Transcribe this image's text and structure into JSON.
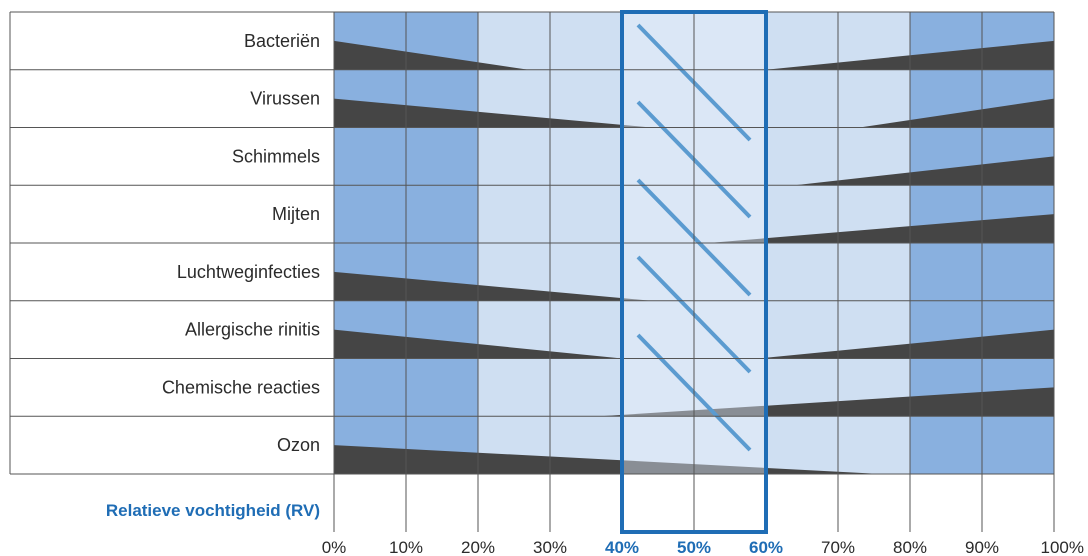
{
  "chart_data": {
    "type": "area",
    "xlabel": "Relatieve vochtigheid (RV)",
    "x_ticks": [
      "0%",
      "10%",
      "20%",
      "30%",
      "40%",
      "50%",
      "60%",
      "70%",
      "80%",
      "90%",
      "100%"
    ],
    "x_values": [
      0,
      10,
      20,
      30,
      40,
      50,
      60,
      70,
      80,
      90,
      100
    ],
    "highlighted_ticks": [
      "40%",
      "50%",
      "60%"
    ],
    "optimal_range": [
      40,
      60
    ],
    "xlim": [
      0,
      100
    ],
    "zones": [
      {
        "from": 0,
        "to": 20,
        "level": "high"
      },
      {
        "from": 20,
        "to": 40,
        "level": "low"
      },
      {
        "from": 40,
        "to": 60,
        "level": "optimal"
      },
      {
        "from": 60,
        "to": 80,
        "level": "low"
      },
      {
        "from": 80,
        "to": 100,
        "level": "high"
      }
    ],
    "series": [
      {
        "name": "Bacteriën",
        "left": {
          "from": 0,
          "to": 27
        },
        "right": {
          "from": 60,
          "to": 100
        }
      },
      {
        "name": "Virussen",
        "left": {
          "from": 0,
          "to": 44
        },
        "right": {
          "from": 73,
          "to": 100
        }
      },
      {
        "name": "Schimmels",
        "left": null,
        "right": {
          "from": 64,
          "to": 100
        }
      },
      {
        "name": "Mijten",
        "left": null,
        "right": {
          "from": 52,
          "to": 100
        }
      },
      {
        "name": "Luchtweginfecties",
        "left": {
          "from": 0,
          "to": 44
        },
        "right": null
      },
      {
        "name": "Allergische rinitis",
        "left": {
          "from": 0,
          "to": 40
        },
        "right": {
          "from": 59,
          "to": 100
        }
      },
      {
        "name": "Chemische reacties",
        "left": null,
        "right": {
          "from": 37,
          "to": 100
        }
      },
      {
        "name": "Ozon",
        "left": {
          "from": 0,
          "to": 76
        },
        "right": null
      }
    ],
    "grid": true,
    "colors": {
      "high_zone": "#89b0df",
      "low_zone": "#cfdff2",
      "optimal_zone": "#dbe7f6",
      "wedge": "#454545",
      "highlight": "#1f6db5",
      "hatch": "#5b9bd0"
    }
  }
}
